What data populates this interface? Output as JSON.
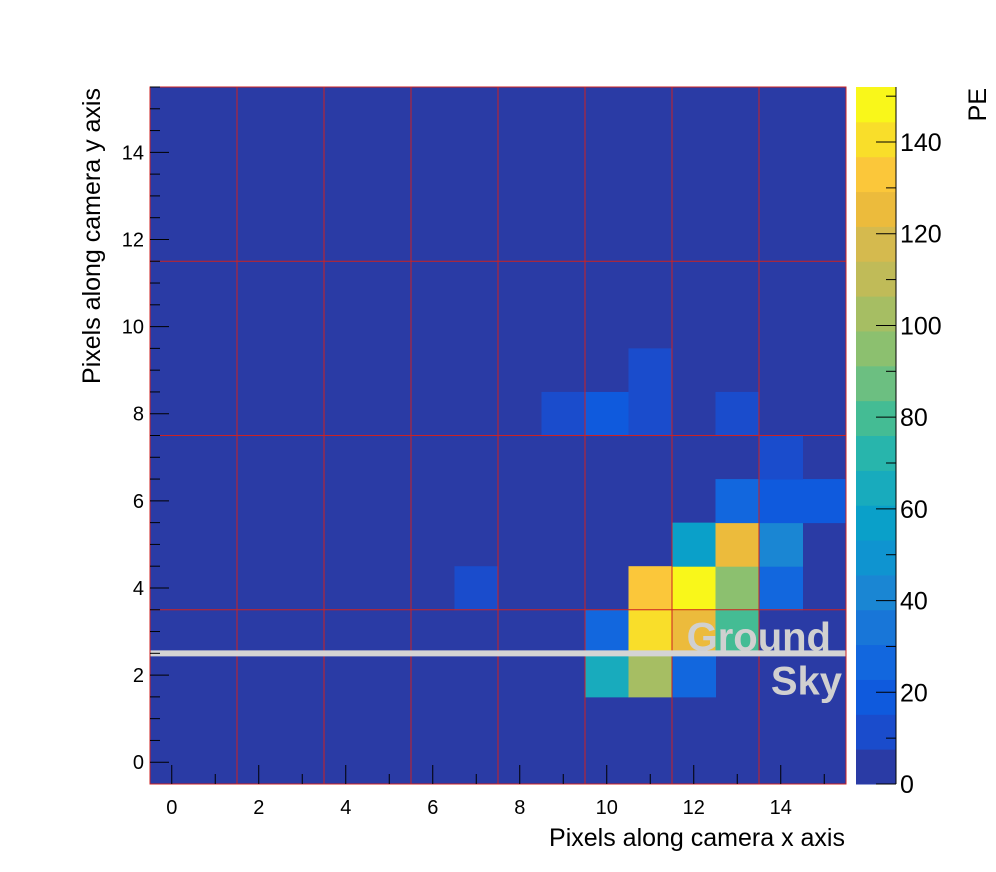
{
  "chart_data": {
    "type": "heatmap",
    "title": "",
    "xlabel": "Pixels along camera x axis",
    "ylabel": "Pixels along camera y axis",
    "colorbar_label": "PE",
    "xlim": [
      -0.5,
      15.5
    ],
    "ylim": [
      -0.5,
      15.5
    ],
    "zlim": [
      0,
      152
    ],
    "x_ticks": [
      0,
      2,
      4,
      6,
      8,
      10,
      12,
      14
    ],
    "x_tick_labels": [
      "0",
      "2",
      "4",
      "6",
      "8",
      "10",
      "12",
      "14"
    ],
    "y_ticks": [
      0,
      2,
      4,
      6,
      8,
      10,
      12,
      14
    ],
    "y_tick_labels": [
      "0",
      "2",
      "4",
      "6",
      "8",
      "10",
      "12",
      "14"
    ],
    "z_ticks": [
      0,
      20,
      40,
      60,
      80,
      100,
      120,
      140
    ],
    "z_tick_labels": [
      "0",
      "20",
      "40",
      "60",
      "80",
      "100",
      "120",
      "140"
    ],
    "background_value": 0,
    "cells": [
      {
        "x": 10,
        "y": 2,
        "z": 62
      },
      {
        "x": 11,
        "y": 2,
        "z": 100
      },
      {
        "x": 12,
        "y": 2,
        "z": 25
      },
      {
        "x": 10,
        "y": 3,
        "z": 26
      },
      {
        "x": 11,
        "y": 3,
        "z": 143
      },
      {
        "x": 12,
        "y": 3,
        "z": 123
      },
      {
        "x": 13,
        "y": 3,
        "z": 78
      },
      {
        "x": 7,
        "y": 4,
        "z": 12
      },
      {
        "x": 11,
        "y": 4,
        "z": 136
      },
      {
        "x": 12,
        "y": 4,
        "z": 150
      },
      {
        "x": 13,
        "y": 4,
        "z": 95
      },
      {
        "x": 14,
        "y": 4,
        "z": 28
      },
      {
        "x": 12,
        "y": 5,
        "z": 58
      },
      {
        "x": 13,
        "y": 5,
        "z": 126
      },
      {
        "x": 14,
        "y": 5,
        "z": 45
      },
      {
        "x": 13,
        "y": 6,
        "z": 30
      },
      {
        "x": 14,
        "y": 6,
        "z": 17
      },
      {
        "x": 15,
        "y": 6,
        "z": 17
      },
      {
        "x": 14,
        "y": 7,
        "z": 12
      },
      {
        "x": 9,
        "y": 8,
        "z": 12
      },
      {
        "x": 10,
        "y": 8,
        "z": 20
      },
      {
        "x": 11,
        "y": 8,
        "z": 12
      },
      {
        "x": 13,
        "y": 8,
        "z": 12
      },
      {
        "x": 11,
        "y": 9,
        "z": 12
      }
    ],
    "module_grid_x": [
      1.5,
      3.5,
      5.5,
      7.5,
      9.5,
      11.5,
      13.5
    ],
    "module_grid_y": [
      3.5,
      7.5,
      11.5
    ],
    "horizon_y": 2.5,
    "annotations": [
      {
        "text": "Ground",
        "x": 15.5,
        "y": 2.5,
        "side": "above"
      },
      {
        "text": "Sky",
        "x": 15.5,
        "y": 2.5,
        "side": "below"
      }
    ],
    "colors": {
      "grid": "#cc2222",
      "horizon": "#d4d4d4",
      "annotation": "#d0d0d0",
      "axis": "#000000"
    }
  }
}
